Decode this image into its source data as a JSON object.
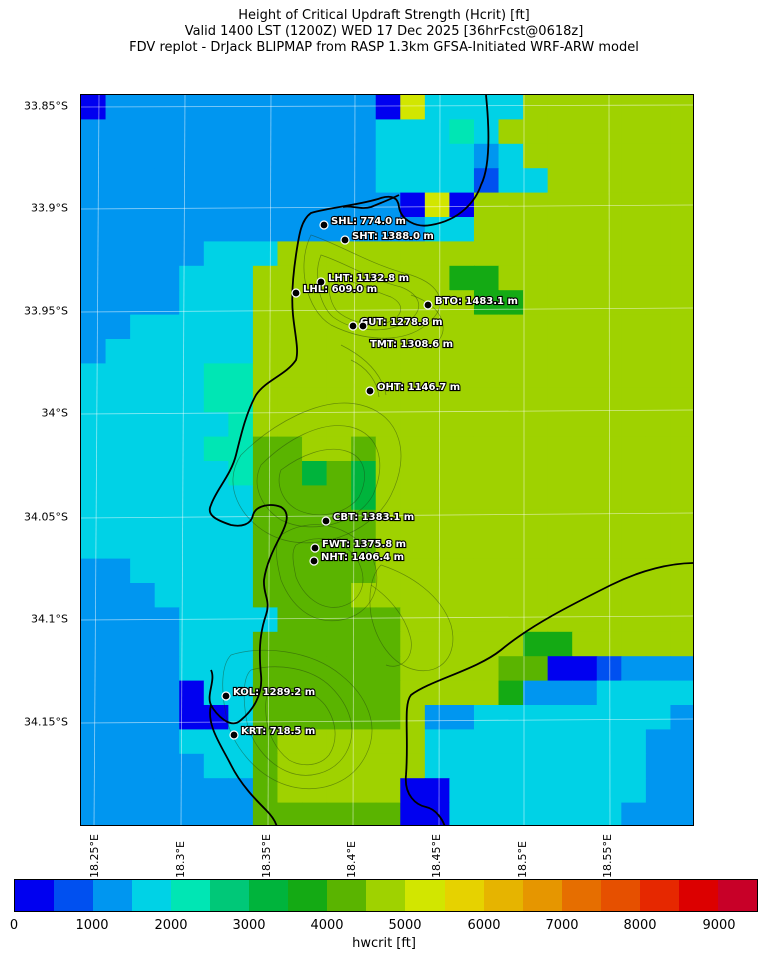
{
  "title": {
    "line1": "Height of Critical Updraft Strength (Hcrit) [ft]",
    "line2": "Valid 1400 LST (1200Z) WED 17 Dec 2025 [36hrFcst@0618z]",
    "line3": "FDV replot - DrJack BLIPMAP from RASP 1.3km GFSA-Initiated WRF-ARW model"
  },
  "axes": {
    "lat_labels": [
      "33.85°S",
      "33.9°S",
      "33.95°S",
      "34°S",
      "34.05°S",
      "34.1°S",
      "34.15°S"
    ],
    "lon_labels": [
      "18.25°E",
      "18.3°E",
      "18.35°E",
      "18.4°E",
      "18.45°E",
      "18.5°E",
      "18.55°E"
    ]
  },
  "stations": [
    {
      "name": "SHL",
      "label": "SHL: 774.0 m"
    },
    {
      "name": "SHT",
      "label": "SHT: 1388.0 m"
    },
    {
      "name": "LHT",
      "label": "LHT: 1132.8 m"
    },
    {
      "name": "LHL",
      "label": "LHL: 609.0 m"
    },
    {
      "name": "BTO",
      "label": "BTO: 1483.1 m"
    },
    {
      "name": "GUT",
      "label": "GUT: 1278.8 m"
    },
    {
      "name": "TMT",
      "label": "TMT: 1308.6 m"
    },
    {
      "name": "OHT",
      "label": "OHT: 1146.7 m"
    },
    {
      "name": "CBT",
      "label": "CBT: 1383.1 m"
    },
    {
      "name": "FWT",
      "label": "FWT: 1375.8 m"
    },
    {
      "name": "NHT",
      "label": "NHT: 1406.4 m"
    },
    {
      "name": "KOL",
      "label": "KOL: 1289.2 m"
    },
    {
      "name": "KRT",
      "label": "KRT: 718.5 m"
    }
  ],
  "colorbar": {
    "label": "hwcrit [ft]",
    "ticks": [
      "0",
      "1000",
      "2000",
      "3000",
      "4000",
      "5000",
      "6000",
      "7000",
      "8000",
      "9000"
    ],
    "colors": [
      "#0000f0",
      "#0050f0",
      "#0096f0",
      "#00d2e6",
      "#00e6b4",
      "#00c878",
      "#00b43c",
      "#14aa14",
      "#5ab400",
      "#9fd200",
      "#d2e600",
      "#e6d200",
      "#e6b400",
      "#e69600",
      "#e66e00",
      "#e65000",
      "#e62800",
      "#dc0000",
      "#c80028"
    ]
  }
}
